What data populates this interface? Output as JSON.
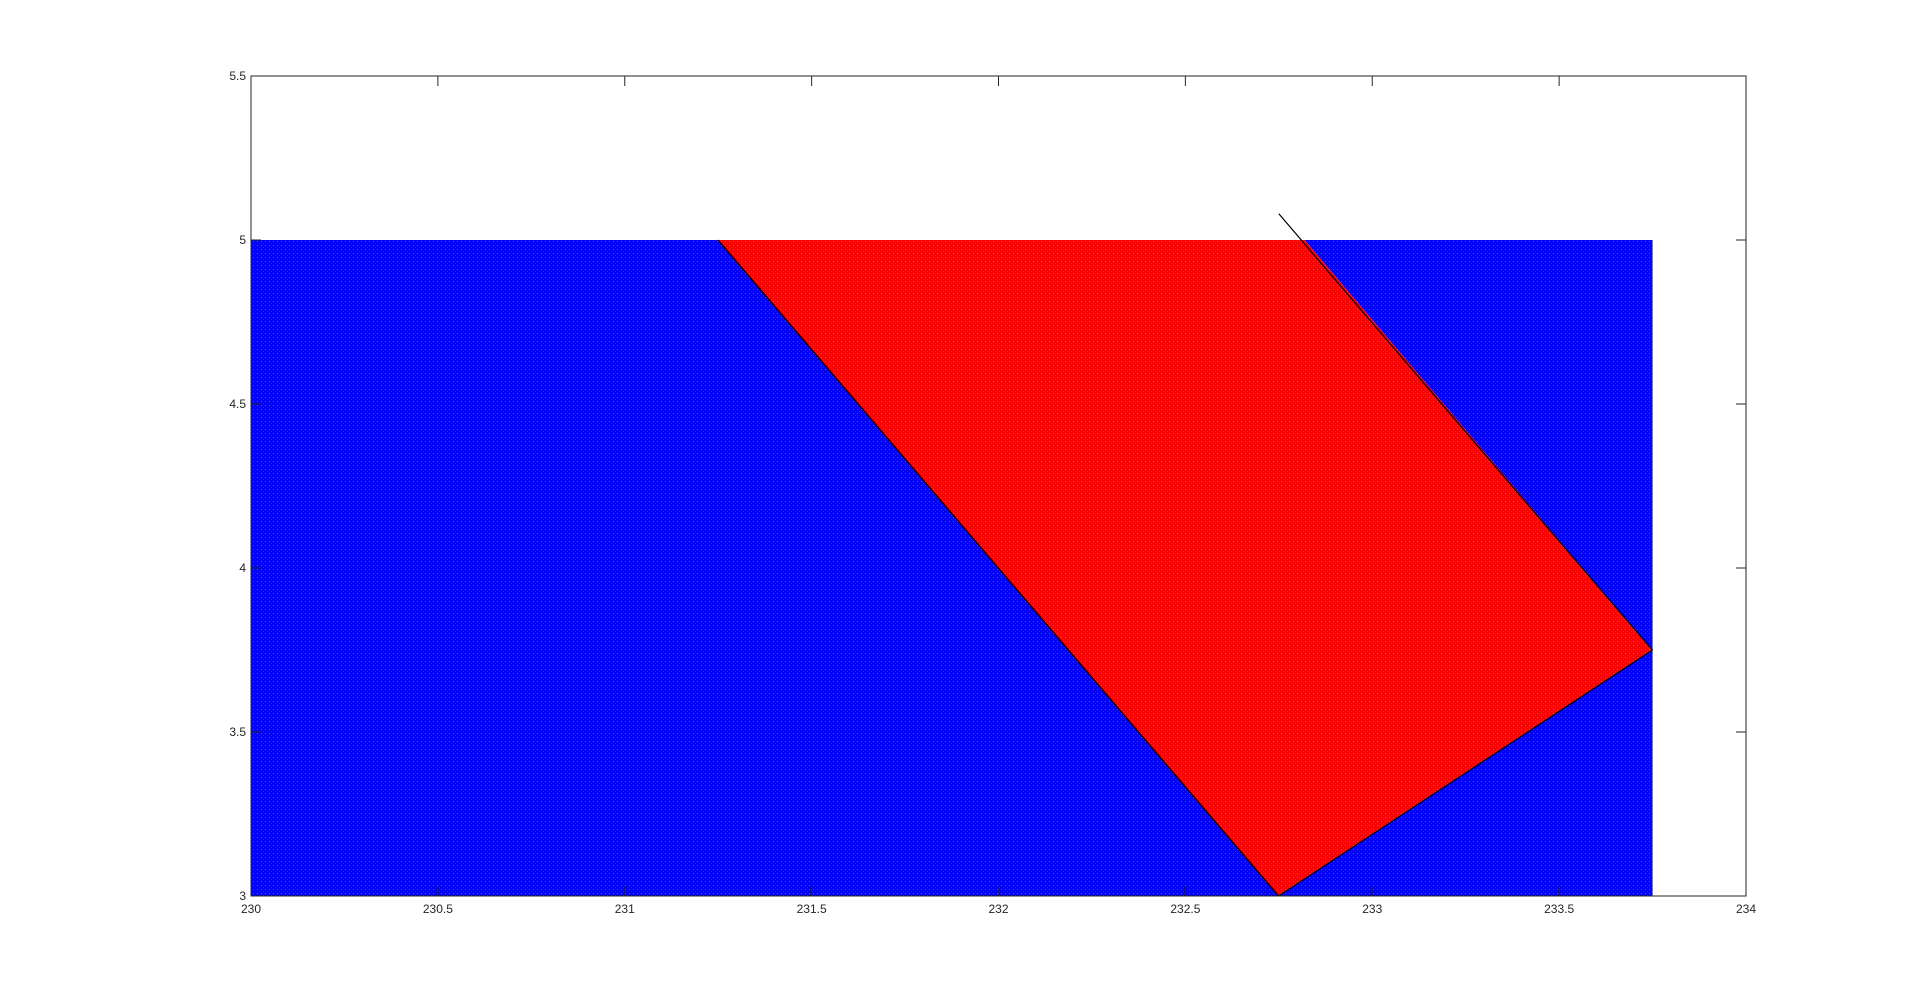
{
  "chart_data": {
    "type": "scatter",
    "title": "",
    "xlabel": "",
    "ylabel": "",
    "xlim": [
      230,
      234
    ],
    "ylim": [
      3,
      5.5
    ],
    "x_ticks": [
      230,
      230.5,
      231,
      231.5,
      232,
      232.5,
      233,
      233.5,
      234
    ],
    "x_tick_labels": [
      "230",
      "230.5",
      "231",
      "231.5",
      "232",
      "232.5",
      "233",
      "233.5",
      "234"
    ],
    "y_ticks": [
      3,
      3.5,
      4,
      4.5,
      5,
      5.5
    ],
    "y_tick_labels": [
      "3",
      "3.5",
      "4",
      "4.5",
      "5",
      "5.5"
    ],
    "grid": false,
    "box": true,
    "regions": [
      {
        "kind": "blue-point-field",
        "color": "#0000ff",
        "x_range": [
          230,
          233.75
        ],
        "y_range": [
          3,
          5
        ]
      },
      {
        "kind": "red-point-field",
        "color": "#ff0000",
        "vertices": [
          [
            231.25,
            5
          ],
          [
            232.82,
            5
          ],
          [
            233.75,
            3.75
          ],
          [
            232.75,
            3
          ]
        ]
      }
    ],
    "lines": [
      {
        "color": "#000000",
        "points": [
          [
            232.75,
            5.08
          ],
          [
            233.75,
            3.75
          ]
        ]
      },
      {
        "color": "#000000",
        "points": [
          [
            231.25,
            5
          ],
          [
            232.75,
            3
          ]
        ]
      },
      {
        "color": "#000000",
        "points": [
          [
            232.75,
            3
          ],
          [
            233.75,
            3.75
          ]
        ]
      }
    ]
  }
}
